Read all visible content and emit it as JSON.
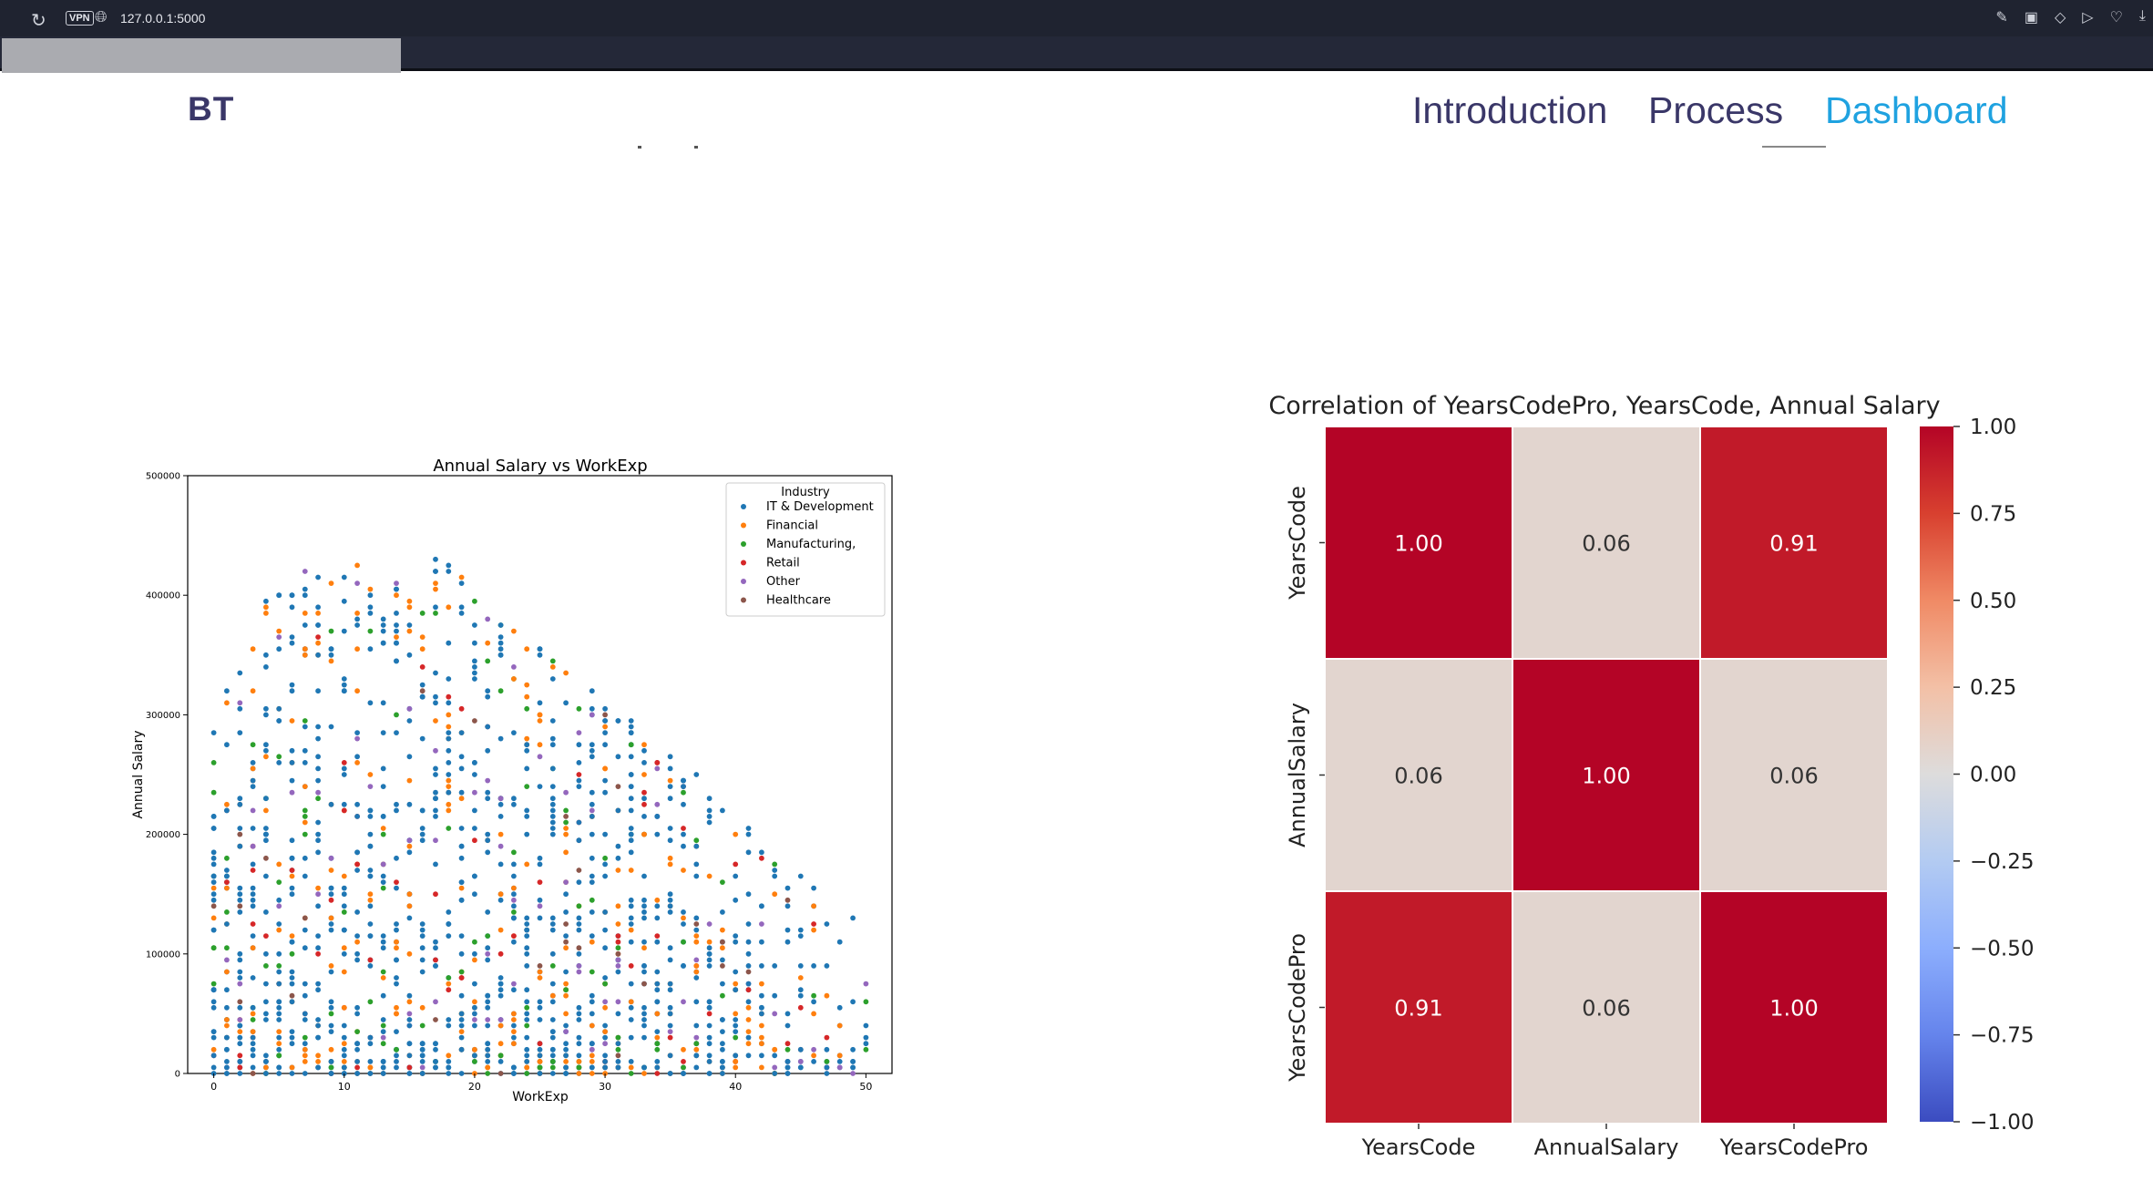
{
  "browser": {
    "url": "127.0.0.1:5000",
    "vpn_label": "VPN"
  },
  "header": {
    "logo": "BT",
    "nav": [
      {
        "label": "Introduction",
        "active": false
      },
      {
        "label": "Process",
        "active": false
      },
      {
        "label": "Dashboard",
        "active": true
      }
    ],
    "active_color": "#1fa2e0",
    "text_color": "#3a3768"
  },
  "scatter": {
    "chart_data": {
      "type": "scatter",
      "title": "Annual Salary vs WorkExp",
      "xlabel": "WorkExp",
      "ylabel": "Annual Salary",
      "xlim": [
        -2,
        52
      ],
      "ylim": [
        0,
        500000
      ],
      "xticks": [
        "0",
        "10",
        "20",
        "30",
        "40",
        "50"
      ],
      "yticks": [
        "0",
        "100000",
        "200000",
        "300000",
        "400000",
        "500000"
      ],
      "legend_title": "Industry",
      "legend_position": "top-right",
      "series": [
        {
          "name": "IT & Development",
          "color": "#1f77b4"
        },
        {
          "name": "Financial",
          "color": "#ff7f0e"
        },
        {
          "name": "Manufacturing,",
          "color": "#2ca02c"
        },
        {
          "name": "Retail",
          "color": "#d62728"
        },
        {
          "name": "Other",
          "color": "#9467bd"
        },
        {
          "name": "Healthcare",
          "color": "#8c564b"
        }
      ]
    }
  },
  "heatmap": {
    "chart_data": {
      "type": "heatmap",
      "title": "Correlation of YearsCodePro, YearsCode, Annual Salary",
      "rows": [
        "YearsCode",
        "AnnualSalary",
        "YearsCodePro"
      ],
      "cols": [
        "YearsCode",
        "AnnualSalary",
        "YearsCodePro"
      ],
      "values": [
        [
          1.0,
          0.06,
          0.91
        ],
        [
          0.06,
          1.0,
          0.06
        ],
        [
          0.91,
          0.06,
          1.0
        ]
      ],
      "labels": [
        [
          "1.00",
          "0.06",
          "0.91"
        ],
        [
          "0.06",
          "1.00",
          "0.06"
        ],
        [
          "0.91",
          "0.06",
          "1.00"
        ]
      ],
      "colorbar_ticks": [
        "1.00",
        "0.75",
        "0.50",
        "0.25",
        "0.00",
        "−0.25",
        "−0.50",
        "−0.75",
        "−1.00"
      ],
      "vmin": -1,
      "vmax": 1,
      "colormap": "coolwarm"
    }
  }
}
